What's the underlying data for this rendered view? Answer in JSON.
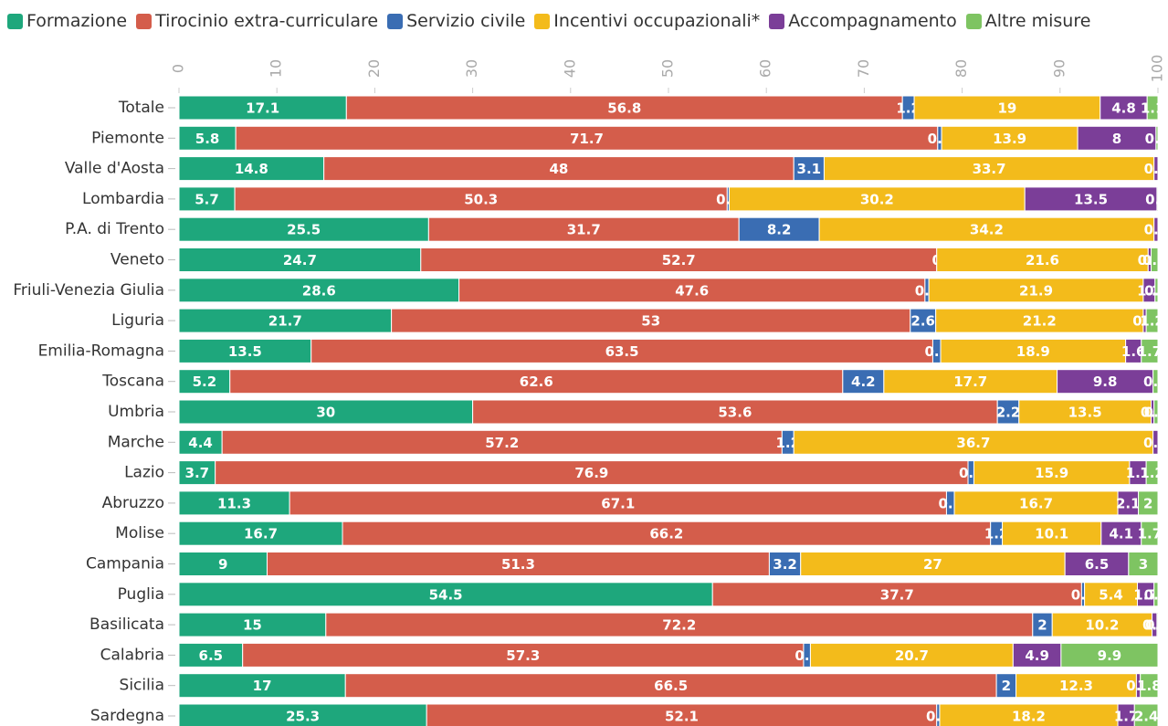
{
  "chart_data": {
    "type": "stacked_bar_horizontal",
    "categories": [
      "Totale",
      "Piemonte",
      "Valle d'Aosta",
      "Lombardia",
      "P.A. di Trento",
      "Veneto",
      "Friuli-Venezia Giulia",
      "Liguria",
      "Emilia-Romagna",
      "Toscana",
      "Umbria",
      "Marche",
      "Lazio",
      "Abruzzo",
      "Molise",
      "Campania",
      "Puglia",
      "Basilicata",
      "Calabria",
      "Sicilia",
      "Sardegna"
    ],
    "series": [
      {
        "name": "Formazione",
        "color": "#1ea77c",
        "values": [
          17.1,
          5.8,
          14.8,
          5.7,
          25.5,
          24.7,
          28.6,
          21.7,
          13.5,
          5.2,
          30,
          4.4,
          3.7,
          11.3,
          16.7,
          9,
          54.5,
          15,
          6.5,
          17,
          25.3
        ]
      },
      {
        "name": "Tirocinio extra-curriculare",
        "color": "#d45d4b",
        "values": [
          56.8,
          71.7,
          48,
          50.3,
          31.7,
          52.7,
          47.6,
          53,
          63.5,
          62.6,
          53.6,
          57.2,
          76.9,
          67.1,
          66.2,
          51.3,
          37.7,
          72.2,
          57.3,
          66.5,
          52.1
        ]
      },
      {
        "name": "Servizio civile",
        "color": "#3a6db3",
        "values": [
          1.2,
          0.4,
          3.1,
          0.2,
          8.2,
          0,
          0.4,
          2.6,
          0.8,
          4.2,
          2.2,
          1.2,
          0.6,
          0.8,
          1.2,
          3.2,
          0.3,
          2,
          0.7,
          2,
          0.3
        ]
      },
      {
        "name": "Incentivi occupazionali*",
        "color": "#f3bb1b",
        "values": [
          19,
          13.9,
          33.7,
          30.2,
          34.2,
          21.6,
          21.9,
          21.2,
          18.9,
          17.7,
          13.5,
          36.7,
          15.9,
          16.7,
          10.1,
          27,
          5.4,
          10.2,
          20.7,
          12.3,
          18.2
        ]
      },
      {
        "name": "Accompagnamento",
        "color": "#7b3e98",
        "values": [
          4.8,
          8,
          0.4,
          13.5,
          0.4,
          0.3,
          1.2,
          0.3,
          1.6,
          9.8,
          0.3,
          0.5,
          1.7,
          2.1,
          4.1,
          6.5,
          1.7,
          0.5,
          4.9,
          0.4,
          1.7
        ]
      },
      {
        "name": "Altre misure",
        "color": "#7ec462",
        "values": [
          1.1,
          0.2,
          0,
          0.1,
          0,
          0.7,
          0.3,
          1.2,
          1.7,
          0.5,
          0.4,
          0,
          1.2,
          2,
          1.7,
          3,
          0.4,
          0.1,
          9.9,
          1.8,
          2.4
        ]
      }
    ],
    "xlim": [
      0,
      100
    ],
    "xticks": [
      0,
      10,
      20,
      30,
      40,
      50,
      60,
      70,
      80,
      90,
      100
    ]
  }
}
